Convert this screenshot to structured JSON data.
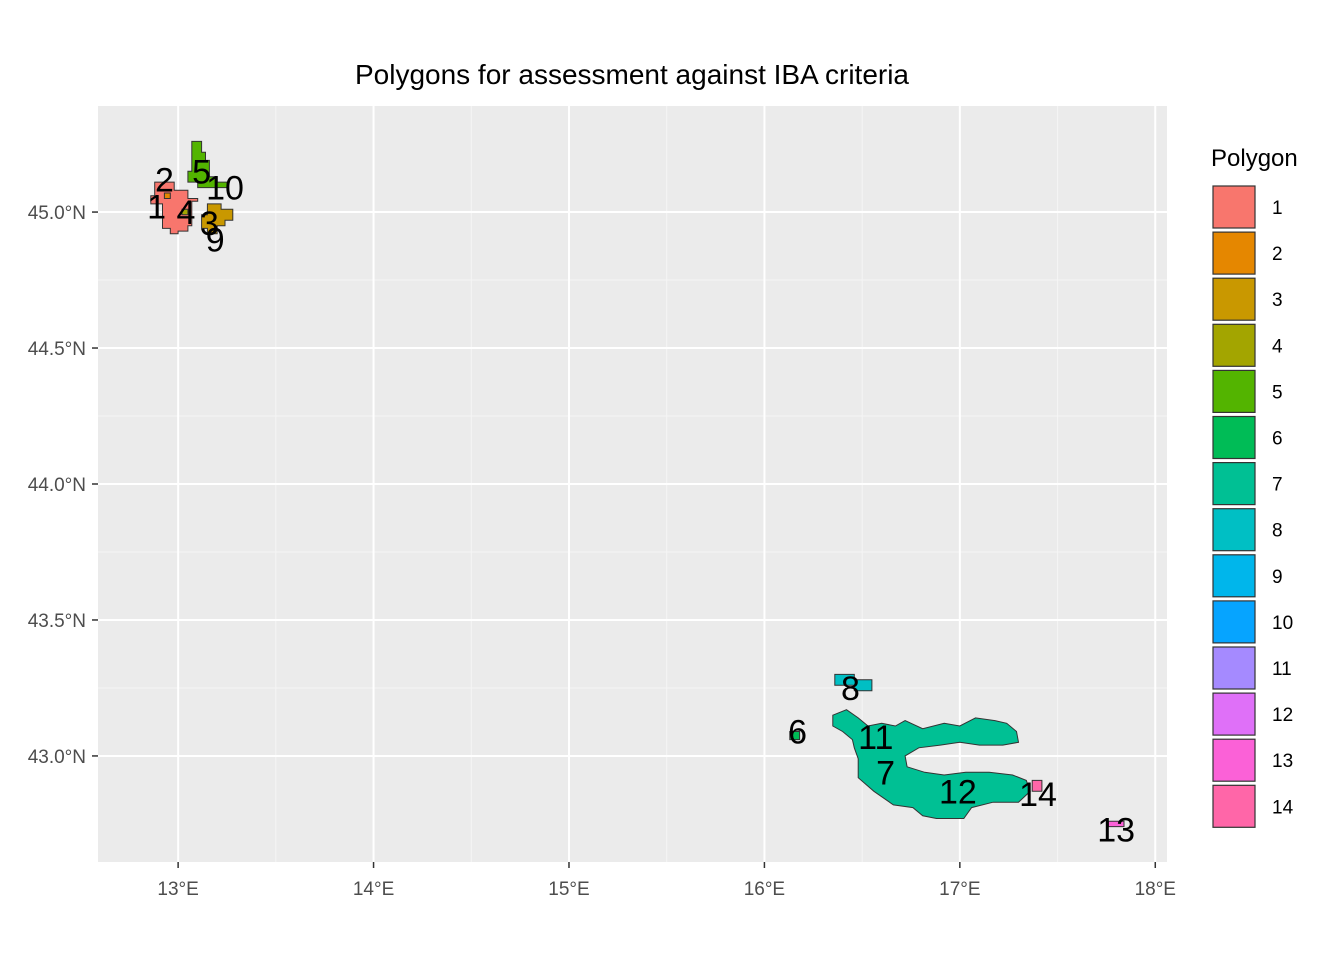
{
  "chart_data": {
    "type": "map",
    "title": "Polygons for assessment against IBA criteria",
    "legend": {
      "title": "Polygon",
      "placement": "right",
      "entries": [
        {
          "label": "1",
          "color": "#F8766D"
        },
        {
          "label": "2",
          "color": "#E58700"
        },
        {
          "label": "3",
          "color": "#C99800"
        },
        {
          "label": "4",
          "color": "#A3A500"
        },
        {
          "label": "5",
          "color": "#53B400"
        },
        {
          "label": "6",
          "color": "#00BC56"
        },
        {
          "label": "7",
          "color": "#00C094"
        },
        {
          "label": "8",
          "color": "#00BFC4"
        },
        {
          "label": "9",
          "color": "#00B6EB"
        },
        {
          "label": "10",
          "color": "#06A4FF"
        },
        {
          "label": "11",
          "color": "#A58AFF"
        },
        {
          "label": "12",
          "color": "#DF70F8"
        },
        {
          "label": "13",
          "color": "#FB61D7"
        },
        {
          "label": "14",
          "color": "#FF66A8"
        }
      ]
    },
    "x_axis": {
      "unit": "longitude_deg_E",
      "range": [
        12.59,
        18.06
      ],
      "ticks": [
        {
          "value": 13,
          "label": "13°E"
        },
        {
          "value": 14,
          "label": "14°E"
        },
        {
          "value": 15,
          "label": "15°E"
        },
        {
          "value": 16,
          "label": "16°E"
        },
        {
          "value": 17,
          "label": "17°E"
        },
        {
          "value": 18,
          "label": "18°E"
        }
      ]
    },
    "y_axis": {
      "unit": "latitude_deg_N",
      "range": [
        42.61,
        45.39
      ],
      "ticks": [
        {
          "value": 43.0,
          "label": "43.0°N"
        },
        {
          "value": 43.5,
          "label": "43.5°N"
        },
        {
          "value": 44.0,
          "label": "44.0°N"
        },
        {
          "value": 44.5,
          "label": "44.5°N"
        },
        {
          "value": 45.0,
          "label": "45.0°N"
        }
      ]
    },
    "grid": true,
    "polygons": [
      {
        "id": "1",
        "label_pos": [
          12.89,
          45.02
        ],
        "outline": [
          [
            12.88,
            45.11
          ],
          [
            12.98,
            45.11
          ],
          [
            12.98,
            45.08
          ],
          [
            13.05,
            45.08
          ],
          [
            13.05,
            45.05
          ],
          [
            13.1,
            45.05
          ],
          [
            13.1,
            45.04
          ],
          [
            13.07,
            45.04
          ],
          [
            13.07,
            44.95
          ],
          [
            13.05,
            44.95
          ],
          [
            13.05,
            44.93
          ],
          [
            13.0,
            44.93
          ],
          [
            13.0,
            44.92
          ],
          [
            12.96,
            44.92
          ],
          [
            12.96,
            44.94
          ],
          [
            12.92,
            44.94
          ],
          [
            12.92,
            45.03
          ],
          [
            12.86,
            45.03
          ],
          [
            12.86,
            45.06
          ],
          [
            12.88,
            45.06
          ]
        ]
      },
      {
        "id": "2",
        "label_pos": [
          12.93,
          45.12
        ],
        "outline": [
          [
            12.93,
            45.07
          ],
          [
            12.96,
            45.07
          ],
          [
            12.96,
            45.05
          ],
          [
            12.93,
            45.05
          ]
        ]
      },
      {
        "id": "3",
        "label_pos": [
          13.16,
          44.96
        ],
        "outline": [
          [
            13.15,
            45.03
          ],
          [
            13.22,
            45.03
          ],
          [
            13.22,
            45.01
          ],
          [
            13.28,
            45.01
          ],
          [
            13.28,
            44.97
          ],
          [
            13.24,
            44.97
          ],
          [
            13.24,
            44.95
          ],
          [
            13.2,
            44.95
          ],
          [
            13.2,
            44.92
          ],
          [
            13.15,
            44.92
          ],
          [
            13.15,
            44.94
          ],
          [
            13.12,
            44.94
          ],
          [
            13.12,
            44.99
          ],
          [
            13.15,
            44.99
          ]
        ]
      },
      {
        "id": "4",
        "label_pos": [
          13.04,
          45.0
        ],
        "outline": [
          [
            13.02,
            45.01
          ],
          [
            13.05,
            45.01
          ],
          [
            13.05,
            44.99
          ],
          [
            13.02,
            44.99
          ]
        ]
      },
      {
        "id": "5",
        "label_pos": [
          13.12,
          45.15
        ],
        "outline": [
          [
            13.07,
            45.26
          ],
          [
            13.12,
            45.26
          ],
          [
            13.12,
            45.22
          ],
          [
            13.14,
            45.22
          ],
          [
            13.14,
            45.19
          ],
          [
            13.16,
            45.19
          ],
          [
            13.16,
            45.13
          ],
          [
            13.2,
            45.13
          ],
          [
            13.2,
            45.11
          ],
          [
            13.25,
            45.11
          ],
          [
            13.25,
            45.09
          ],
          [
            13.1,
            45.09
          ],
          [
            13.1,
            45.11
          ],
          [
            13.05,
            45.11
          ],
          [
            13.05,
            45.15
          ],
          [
            13.07,
            45.15
          ]
        ]
      },
      {
        "id": "6",
        "label_pos": [
          16.17,
          43.09
        ],
        "outline": [
          [
            16.13,
            43.09
          ],
          [
            16.18,
            43.09
          ],
          [
            16.18,
            43.06
          ],
          [
            16.13,
            43.06
          ]
        ]
      },
      {
        "id": "7",
        "label_pos": [
          16.62,
          42.94
        ],
        "outline": [
          [
            16.35,
            43.15
          ],
          [
            16.42,
            43.17
          ],
          [
            16.48,
            43.14
          ],
          [
            16.53,
            43.11
          ],
          [
            16.6,
            43.12
          ],
          [
            16.67,
            43.11
          ],
          [
            16.72,
            43.13
          ],
          [
            16.81,
            43.1
          ],
          [
            16.92,
            43.12
          ],
          [
            17.0,
            43.11
          ],
          [
            17.08,
            43.14
          ],
          [
            17.18,
            43.13
          ],
          [
            17.24,
            43.12
          ],
          [
            17.29,
            43.09
          ],
          [
            17.3,
            43.05
          ],
          [
            17.22,
            43.04
          ],
          [
            17.1,
            43.04
          ],
          [
            17.0,
            43.05
          ],
          [
            16.9,
            43.04
          ],
          [
            16.79,
            43.03
          ],
          [
            16.72,
            43.0
          ],
          [
            16.73,
            42.96
          ],
          [
            16.82,
            42.94
          ],
          [
            16.92,
            42.93
          ],
          [
            17.03,
            42.94
          ],
          [
            17.15,
            42.94
          ],
          [
            17.27,
            42.93
          ],
          [
            17.34,
            42.91
          ],
          [
            17.36,
            42.87
          ],
          [
            17.3,
            42.83
          ],
          [
            17.17,
            42.83
          ],
          [
            17.06,
            42.81
          ],
          [
            17.02,
            42.77
          ],
          [
            16.95,
            42.77
          ],
          [
            16.88,
            42.77
          ],
          [
            16.81,
            42.78
          ],
          [
            16.76,
            42.81
          ],
          [
            16.66,
            42.82
          ],
          [
            16.56,
            42.87
          ],
          [
            16.48,
            42.92
          ],
          [
            16.48,
            42.99
          ],
          [
            16.46,
            43.03
          ],
          [
            16.45,
            43.06
          ],
          [
            16.4,
            43.09
          ],
          [
            16.35,
            43.11
          ]
        ]
      },
      {
        "id": "8",
        "label_pos": [
          16.44,
          43.25
        ],
        "outline": [
          [
            16.36,
            43.3
          ],
          [
            16.46,
            43.3
          ],
          [
            16.46,
            43.28
          ],
          [
            16.55,
            43.28
          ],
          [
            16.55,
            43.24
          ],
          [
            16.46,
            43.24
          ],
          [
            16.46,
            43.26
          ],
          [
            16.36,
            43.26
          ]
        ]
      },
      {
        "id": "9",
        "label_pos": [
          13.19,
          44.9
        ],
        "outline": []
      },
      {
        "id": "10",
        "label_pos": [
          13.24,
          45.09
        ],
        "outline": []
      },
      {
        "id": "11",
        "label_pos": [
          16.57,
          43.07
        ],
        "outline": []
      },
      {
        "id": "12",
        "label_pos": [
          16.99,
          42.87
        ],
        "outline": []
      },
      {
        "id": "13",
        "label_pos": [
          17.8,
          42.73
        ],
        "outline": [
          [
            17.76,
            42.76
          ],
          [
            17.84,
            42.76
          ],
          [
            17.84,
            42.74
          ],
          [
            17.76,
            42.74
          ]
        ]
      },
      {
        "id": "14",
        "label_pos": [
          17.4,
          42.86
        ],
        "outline": [
          [
            17.37,
            42.91
          ],
          [
            17.42,
            42.91
          ],
          [
            17.42,
            42.87
          ],
          [
            17.37,
            42.87
          ]
        ]
      }
    ]
  }
}
